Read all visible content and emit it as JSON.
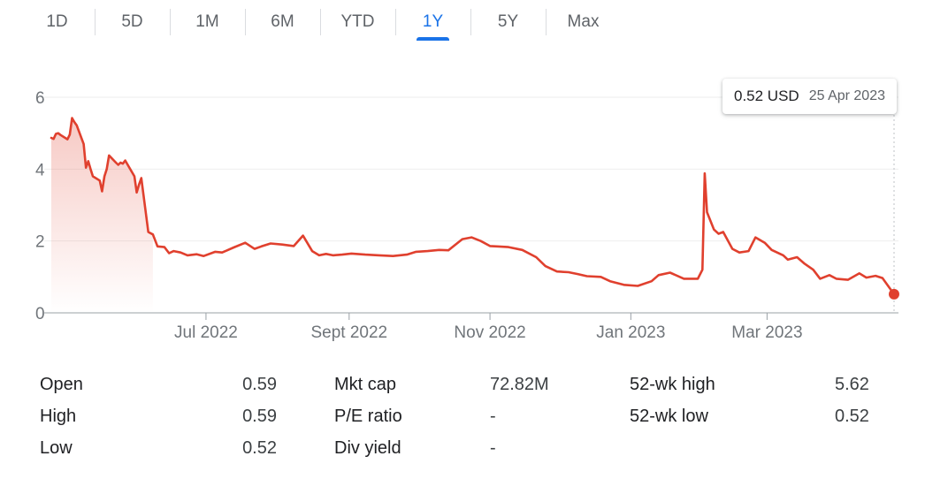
{
  "tabs": [
    {
      "label": "1D"
    },
    {
      "label": "5D"
    },
    {
      "label": "1M"
    },
    {
      "label": "6M"
    },
    {
      "label": "YTD"
    },
    {
      "label": "1Y"
    },
    {
      "label": "5Y"
    },
    {
      "label": "Max"
    }
  ],
  "active_tab": "1Y",
  "tooltip": {
    "value": "0.52 USD",
    "date": "25 Apr 2023"
  },
  "colors": {
    "line": "#e0402e",
    "active_tab": "#1a73e8",
    "grid": "#eeeeee"
  },
  "chart_data": {
    "type": "line",
    "title": "",
    "xlabel": "",
    "ylabel": "",
    "ylim": [
      0,
      6
    ],
    "xlim": [
      "2022-04-25",
      "2023-04-25"
    ],
    "y_ticks": [
      0,
      2,
      4,
      6
    ],
    "y_tick_labels": [
      "0",
      "2",
      "4",
      "6"
    ],
    "x_ticks": [
      "2022-07-01",
      "2022-09-01",
      "2022-11-01",
      "2023-01-01",
      "2023-03-01"
    ],
    "x_tick_labels": [
      "Jul 2022",
      "Sept 2022",
      "Nov 2022",
      "Jan 2023",
      "Mar 2023"
    ],
    "grid": true,
    "baseline_fill": "gradient from line color to white over first part of series",
    "series": [
      {
        "x": [
          "2022-04-25",
          "2022-04-26",
          "2022-04-27",
          "2022-04-28",
          "2022-04-29",
          "2022-05-02",
          "2022-05-03",
          "2022-05-04",
          "2022-05-05",
          "2022-05-06",
          "2022-05-09",
          "2022-05-10",
          "2022-05-11",
          "2022-05-12",
          "2022-05-13",
          "2022-05-16",
          "2022-05-17",
          "2022-05-18",
          "2022-05-19",
          "2022-05-20",
          "2022-05-23",
          "2022-05-24",
          "2022-05-25",
          "2022-05-26",
          "2022-05-27",
          "2022-05-31",
          "2022-06-01",
          "2022-06-02",
          "2022-06-03",
          "2022-06-06",
          "2022-06-08",
          "2022-06-10",
          "2022-06-13",
          "2022-06-15",
          "2022-06-17",
          "2022-06-20",
          "2022-06-23",
          "2022-06-27",
          "2022-06-30",
          "2022-07-05",
          "2022-07-08",
          "2022-07-13",
          "2022-07-18",
          "2022-07-22",
          "2022-07-25",
          "2022-07-29",
          "2022-08-03",
          "2022-08-08",
          "2022-08-12",
          "2022-08-16",
          "2022-08-19",
          "2022-08-22",
          "2022-08-25",
          "2022-08-29",
          "2022-09-02",
          "2022-09-08",
          "2022-09-14",
          "2022-09-20",
          "2022-09-26",
          "2022-09-30",
          "2022-10-05",
          "2022-10-10",
          "2022-10-14",
          "2022-10-20",
          "2022-10-24",
          "2022-10-28",
          "2022-11-01",
          "2022-11-04",
          "2022-11-09",
          "2022-11-15",
          "2022-11-21",
          "2022-11-25",
          "2022-11-30",
          "2022-12-05",
          "2022-12-09",
          "2022-12-13",
          "2022-12-19",
          "2022-12-23",
          "2022-12-29",
          "2023-01-04",
          "2023-01-10",
          "2023-01-13",
          "2023-01-18",
          "2023-01-24",
          "2023-01-30",
          "2023-02-01",
          "2023-02-02",
          "2023-02-03",
          "2023-02-06",
          "2023-02-08",
          "2023-02-10",
          "2023-02-14",
          "2023-02-17",
          "2023-02-21",
          "2023-02-24",
          "2023-02-28",
          "2023-03-03",
          "2023-03-08",
          "2023-03-10",
          "2023-03-14",
          "2023-03-17",
          "2023-03-21",
          "2023-03-24",
          "2023-03-28",
          "2023-03-31",
          "2023-04-05",
          "2023-04-10",
          "2023-04-13",
          "2023-04-17",
          "2023-04-20",
          "2023-04-25"
        ],
        "values": [
          4.87,
          4.84,
          4.98,
          5.0,
          4.95,
          4.83,
          4.96,
          5.42,
          5.31,
          5.22,
          4.7,
          4.04,
          4.22,
          4.0,
          3.8,
          3.68,
          3.38,
          3.8,
          4.0,
          4.38,
          4.18,
          4.12,
          4.18,
          4.15,
          4.24,
          3.8,
          3.35,
          3.57,
          3.75,
          2.25,
          2.18,
          1.85,
          1.83,
          1.66,
          1.72,
          1.68,
          1.6,
          1.63,
          1.58,
          1.7,
          1.68,
          1.82,
          1.95,
          1.78,
          1.85,
          1.93,
          1.9,
          1.86,
          2.15,
          1.72,
          1.6,
          1.64,
          1.6,
          1.62,
          1.65,
          1.62,
          1.6,
          1.58,
          1.62,
          1.7,
          1.72,
          1.75,
          1.74,
          2.05,
          2.1,
          2.0,
          1.86,
          1.85,
          1.83,
          1.75,
          1.55,
          1.3,
          1.15,
          1.13,
          1.08,
          1.02,
          1.0,
          0.88,
          0.78,
          0.75,
          0.88,
          1.05,
          1.12,
          0.95,
          0.95,
          1.2,
          3.88,
          2.8,
          2.32,
          2.2,
          2.25,
          1.78,
          1.68,
          1.72,
          2.1,
          1.95,
          1.75,
          1.6,
          1.48,
          1.55,
          1.38,
          1.2,
          0.95,
          1.05,
          0.95,
          0.92,
          1.1,
          0.98,
          1.03,
          0.97,
          0.52
        ]
      }
    ]
  },
  "stats": {
    "col1": [
      {
        "label": "Open",
        "value": "0.59"
      },
      {
        "label": "High",
        "value": "0.59"
      },
      {
        "label": "Low",
        "value": "0.52"
      }
    ],
    "col2": [
      {
        "label": "Mkt cap",
        "value": "72.82M"
      },
      {
        "label": "P/E ratio",
        "value": "-"
      },
      {
        "label": "Div yield",
        "value": "-"
      }
    ],
    "col3": [
      {
        "label": "52-wk high",
        "value": "5.62"
      },
      {
        "label": "52-wk low",
        "value": "0.52"
      }
    ]
  }
}
